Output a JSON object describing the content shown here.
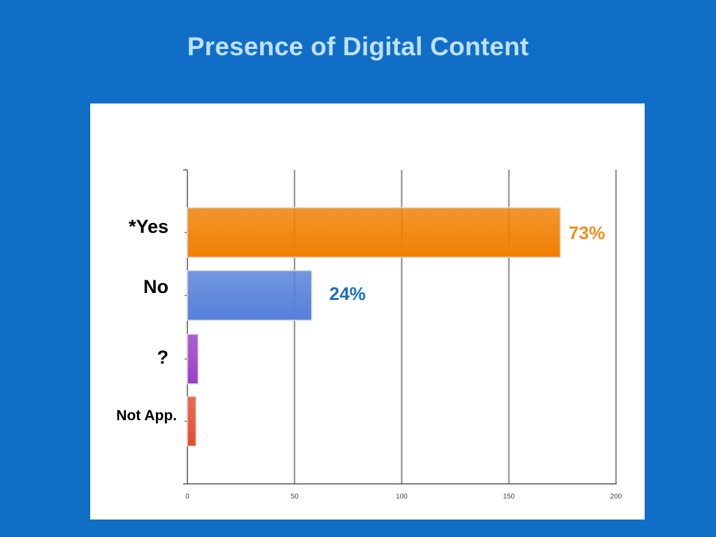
{
  "slide": {
    "title": "Presence of Digital Content"
  },
  "chart_data": {
    "type": "bar",
    "orientation": "horizontal",
    "title": "",
    "xlabel": "",
    "ylabel": "",
    "xlim": [
      0,
      200
    ],
    "xticks": [
      "0",
      "50",
      "100",
      "150",
      "200"
    ],
    "grid": true,
    "categories": [
      "*Yes",
      "No",
      "?",
      "Not App."
    ],
    "values": [
      174,
      58,
      5,
      4
    ],
    "bar_colors": [
      "#f07f00",
      "#5580d8",
      "#9b3ec8",
      "#e54b30"
    ],
    "category_label_colors": [
      "#f0901e",
      "#000000",
      "#000000",
      "#000000"
    ],
    "data_labels": [
      {
        "category": "*Yes",
        "text": "73%",
        "color": "#f0901e"
      },
      {
        "category": "No",
        "text": "24%",
        "color": "#1a6fc1"
      }
    ]
  }
}
